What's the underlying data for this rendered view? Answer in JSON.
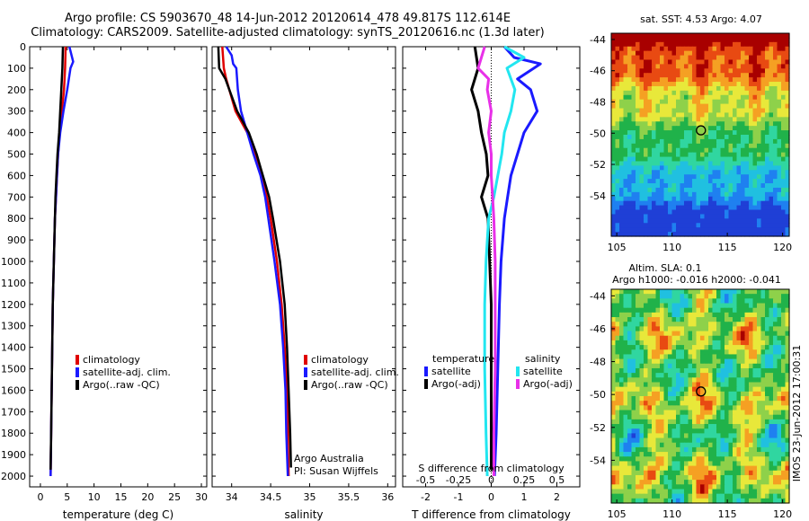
{
  "title_line1": "Argo profile: CS 5903670_48 14-Jun-2012 20120614_478 49.817S 112.614E",
  "title_line2": "Climatology: CARS2009. Satellite-adjusted climatology: synTS_20120616.nc (1.3d later)",
  "colors": {
    "climatology": "#e00000",
    "satellite": "#1a1aff",
    "argo": "#000000",
    "sat_salinity": "#22e6f0",
    "argo_salinity": "#e830e8"
  },
  "depth_ticks": [
    "0",
    "100",
    "200",
    "300",
    "400",
    "500",
    "600",
    "700",
    "800",
    "900",
    "1000",
    "1100",
    "1200",
    "1300",
    "1400",
    "1500",
    "1600",
    "1700",
    "1800",
    "1900",
    "2000"
  ],
  "map_top": {
    "title": "sat. SST: 4.53 Argo: 4.07",
    "yticks": [
      "-44",
      "-46",
      "-48",
      "-50",
      "-52",
      "-54"
    ],
    "xticks": [
      "105",
      "110",
      "115",
      "120"
    ],
    "palette": [
      "#1f3fd6",
      "#1f80f0",
      "#20c0e0",
      "#30d6a0",
      "#20b24a",
      "#8ed14a",
      "#e8e83a",
      "#f5a023",
      "#e84a12",
      "#a80000"
    ]
  },
  "map_bottom": {
    "title_line1": "Altim. SLA: 0.1",
    "title_line2": "Argo h1000: -0.016 h2000: -0.041",
    "yticks": [
      "-44",
      "-46",
      "-48",
      "-50",
      "-52",
      "-54"
    ],
    "xticks": [
      "105",
      "110",
      "115",
      "120"
    ]
  },
  "side_label": "IMOS 23-Jun-2012 17:00:31",
  "chart_data": [
    {
      "type": "line",
      "xlabel": "temperature (deg C)",
      "xlim": [
        -2,
        31
      ],
      "ylim": [
        2050,
        0
      ],
      "xticks": [
        "0",
        "5",
        "10",
        "15",
        "20",
        "25",
        "30"
      ],
      "legend": [
        "climatology",
        "satellite-adj. clim.",
        "Argo(..raw -QC)"
      ],
      "series": [
        {
          "name": "climatology",
          "depth": [
            0,
            100,
            200,
            300,
            400,
            500,
            600,
            700,
            800,
            900,
            1000,
            1200,
            1400,
            1600,
            1800,
            2000
          ],
          "values": [
            4.7,
            4.6,
            4.4,
            4.0,
            3.6,
            3.3,
            3.1,
            2.9,
            2.7,
            2.6,
            2.5,
            2.3,
            2.2,
            2.1,
            2.0,
            1.9
          ]
        },
        {
          "name": "satellite-adj. clim.",
          "depth": [
            0,
            70,
            100,
            200,
            300,
            400,
            500,
            600,
            700,
            800,
            900,
            1000,
            1200,
            1400,
            1600,
            1800,
            2000
          ],
          "values": [
            5.4,
            6.1,
            5.6,
            5.0,
            4.3,
            3.7,
            3.3,
            3.1,
            2.9,
            2.7,
            2.6,
            2.5,
            2.3,
            2.2,
            2.1,
            2.0,
            1.9
          ]
        },
        {
          "name": "Argo(..raw -QC)",
          "depth": [
            0,
            100,
            200,
            300,
            400,
            500,
            600,
            700,
            800,
            900,
            1000,
            1200,
            1400,
            1600,
            1800,
            1970
          ],
          "values": [
            4.2,
            4.1,
            3.9,
            3.7,
            3.5,
            3.2,
            3.0,
            2.8,
            2.7,
            2.6,
            2.5,
            2.3,
            2.2,
            2.1,
            2.0,
            1.9
          ]
        }
      ]
    },
    {
      "type": "line",
      "xlabel": "salinity",
      "xlim": [
        33.75,
        36.1
      ],
      "ylim": [
        2050,
        0
      ],
      "xticks": [
        "34",
        "34.5",
        "35",
        "35.5",
        "36"
      ],
      "legend": [
        "climatology",
        "satellite-adj. clim.",
        "Argo(..raw -QC)"
      ],
      "annotations": [
        "Argo Australia",
        "PI: Susan Wijffels"
      ],
      "series": [
        {
          "name": "climatology",
          "depth": [
            0,
            100,
            150,
            200,
            300,
            400,
            500,
            600,
            700,
            800,
            1000,
            1200,
            1400,
            1600,
            1800,
            2000
          ],
          "values": [
            33.88,
            33.9,
            33.93,
            33.97,
            34.05,
            34.2,
            34.3,
            34.38,
            34.45,
            34.5,
            34.58,
            34.64,
            34.68,
            34.71,
            34.72,
            34.73
          ]
        },
        {
          "name": "satellite-adj. clim.",
          "depth": [
            0,
            40,
            80,
            100,
            200,
            300,
            400,
            500,
            600,
            700,
            800,
            1000,
            1200,
            1400,
            1600,
            1800,
            2000
          ],
          "values": [
            33.93,
            34.0,
            34.02,
            34.06,
            34.08,
            34.12,
            34.2,
            34.28,
            34.37,
            34.43,
            34.47,
            34.55,
            34.62,
            34.66,
            34.69,
            34.7,
            34.72
          ]
        },
        {
          "name": "Argo(..raw -QC)",
          "depth": [
            0,
            100,
            150,
            200,
            300,
            400,
            500,
            600,
            700,
            800,
            1000,
            1200,
            1400,
            1600,
            1800,
            1960
          ],
          "values": [
            33.83,
            33.84,
            33.92,
            33.97,
            34.07,
            34.22,
            34.32,
            34.4,
            34.48,
            34.53,
            34.62,
            34.68,
            34.71,
            34.73,
            34.75,
            34.76
          ]
        }
      ]
    },
    {
      "type": "line",
      "xlabel": "T difference from climatology",
      "xlabel_top": "S difference from climatology",
      "xlim": [
        -2.7,
        2.7
      ],
      "xlim_salinity": [
        -0.675,
        0.675
      ],
      "ylim": [
        2050,
        0
      ],
      "xticks": [
        "-2",
        "-1",
        "0",
        "1",
        "2"
      ],
      "xticks_salinity": [
        "-0.5",
        "-0.25",
        "0",
        "0.25",
        "0.5"
      ],
      "legend_title_temperature": "temperature",
      "legend_title_salinity": "salinity",
      "legend": [
        "satellite",
        "Argo(-adj)",
        "satellite",
        "Argo(-adj)"
      ],
      "series": [
        {
          "name": "satellite",
          "quantity": "temperature",
          "depth": [
            0,
            50,
            80,
            150,
            200,
            300,
            400,
            500,
            600,
            700,
            800,
            1000,
            1200,
            1500,
            1800,
            2000
          ],
          "values": [
            0.4,
            0.7,
            1.5,
            0.8,
            1.2,
            1.4,
            1.0,
            0.8,
            0.6,
            0.5,
            0.4,
            0.3,
            0.25,
            0.2,
            0.15,
            0.1
          ]
        },
        {
          "name": "Argo(-adj)",
          "quantity": "temperature",
          "depth": [
            0,
            100,
            200,
            300,
            400,
            500,
            600,
            700,
            800,
            1000,
            1200,
            1500,
            1800,
            1970
          ],
          "values": [
            -0.5,
            -0.4,
            -0.6,
            -0.4,
            -0.3,
            -0.15,
            -0.1,
            -0.3,
            -0.1,
            -0.05,
            0.0,
            0.0,
            0.0,
            0.0
          ]
        },
        {
          "name": "satellite",
          "quantity": "salinity",
          "depth": [
            0,
            50,
            100,
            200,
            300,
            400,
            500,
            600,
            700,
            800,
            1000,
            1200,
            1500,
            1800,
            2000
          ],
          "values": [
            0.1,
            0.25,
            0.12,
            0.18,
            0.15,
            0.1,
            0.08,
            0.05,
            0.02,
            -0.02,
            -0.04,
            -0.05,
            -0.05,
            -0.04,
            -0.03
          ]
        },
        {
          "name": "Argo(-adj)",
          "quantity": "salinity",
          "depth": [
            0,
            100,
            150,
            200,
            300,
            400,
            500,
            600,
            700,
            800,
            1000,
            1200,
            1500,
            1800,
            2000
          ],
          "values": [
            -0.05,
            -0.1,
            -0.02,
            -0.03,
            0.0,
            -0.02,
            0.0,
            0.0,
            0.01,
            0.02,
            0.03,
            0.03,
            0.03,
            0.02,
            0.02
          ]
        }
      ]
    }
  ]
}
